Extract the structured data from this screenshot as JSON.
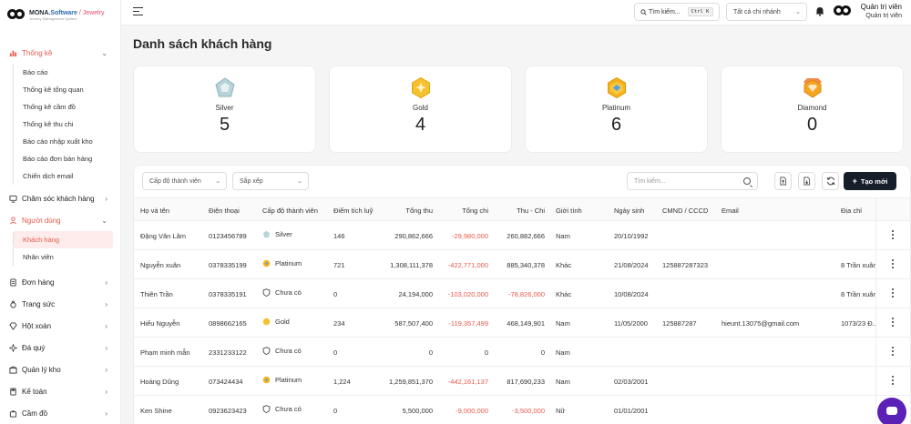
{
  "brand": {
    "name": "MONA.",
    "name2": "Software",
    "sep": " / ",
    "name3": "Jewelry",
    "tagline": "Jewelry Management System"
  },
  "topbar": {
    "search_label": "Tìm kiếm...",
    "search_kbd": "Ctrl K",
    "branch": "Tất cả chi nhánh",
    "user_name": "Quản trị viên",
    "user_role": "Quản trị viên"
  },
  "sidebar": {
    "stats": {
      "label": "Thống kê",
      "items": [
        "Báo cáo",
        "Thống kê tổng quan",
        "Thống kê cầm đồ",
        "Thống kê thu chi",
        "Báo cáo nhập xuất kho",
        "Báo cáo đơn bán hàng",
        "Chiến dịch email"
      ]
    },
    "care": "Chăm sóc khách hàng",
    "users": {
      "label": "Người dùng",
      "items": [
        "Khách hàng",
        "Nhân viên"
      ]
    },
    "rest": [
      "Đơn hàng",
      "Trang sức",
      "Hột xoàn",
      "Đá quý",
      "Quản lý kho",
      "Kế toán",
      "Cầm đồ"
    ]
  },
  "page": {
    "title": "Danh sách khách hàng"
  },
  "tiers": [
    {
      "name": "Silver",
      "count": "5"
    },
    {
      "name": "Gold",
      "count": "4"
    },
    {
      "name": "Platinum",
      "count": "6"
    },
    {
      "name": "Diamond",
      "count": "0"
    }
  ],
  "toolbar": {
    "tier_filter": "Cấp độ thành viên",
    "sort": "Sắp xếp",
    "search_placeholder": "Tìm kiếm...",
    "create_label": "Tạo mới"
  },
  "table": {
    "headers": [
      "Họ và tên",
      "Điện thoại",
      "Cấp độ thành viên",
      "Điểm tích luỹ",
      "Tổng thu",
      "Tổng chi",
      "Thu - Chi",
      "Giới tính",
      "Ngày sinh",
      "CMND / CCCD",
      "Email",
      "Địa chỉ"
    ],
    "rows": [
      [
        "Đặng Văn Lâm",
        "0123456789",
        "Silver",
        "146",
        "290,862,666",
        "-29,980,000",
        "260,882,666",
        "Nam",
        "20/10/1992",
        "",
        "",
        ""
      ],
      [
        "Nguyễn xuân",
        "0378335199",
        "Platinum",
        "721",
        "1,308,111,378",
        "-422,771,000",
        "885,340,378",
        "Khác",
        "21/08/2024",
        "125887287323",
        "",
        "8 Trần xuân"
      ],
      [
        "Thiên Trần",
        "0378335191",
        "Chưa có",
        "0",
        "24,194,000",
        "-103,020,000",
        "-78,826,000",
        "Khác",
        "10/08/2024",
        "",
        "",
        "8 Trần xuân"
      ],
      [
        "Hiếu Nguyễn",
        "0898662165",
        "Gold",
        "234",
        "587,507,400",
        "-119,357,499",
        "468,149,901",
        "Nam",
        "11/05/2000",
        "125887287",
        "hieunt.13075@gmail.com",
        "1073/23 Đ..."
      ],
      [
        "Phạm minh mẫn",
        "2331233122",
        "Chưa có",
        "0",
        "0",
        "0",
        "0",
        "Nam",
        "",
        "",
        "",
        ""
      ],
      [
        "Hoàng Dũng",
        "073424434",
        "Platinum",
        "1,224",
        "1,259,851,370",
        "-442,161,137",
        "817,690,233",
        "Nam",
        "02/03/2001",
        "",
        "",
        ""
      ],
      [
        "Ken Shine",
        "0923623423",
        "Chưa có",
        "0",
        "5,500,000",
        "-9,000,000",
        "-3,500,000",
        "Nữ",
        "01/01/2001",
        "",
        "",
        ""
      ]
    ]
  },
  "colors": {
    "accent": "#e8594a",
    "primary_button": "#161d2b",
    "chat": "#5b21b6"
  }
}
